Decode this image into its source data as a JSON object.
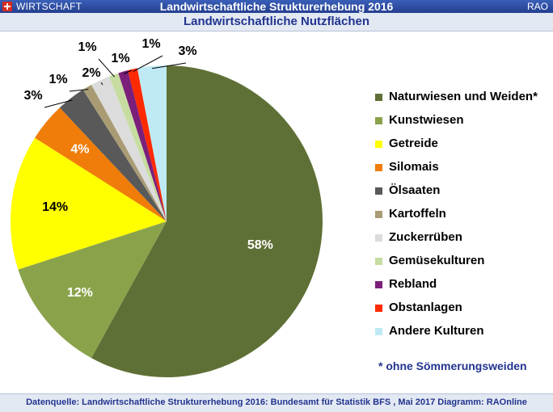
{
  "header": {
    "section": "WIRTSCHAFT",
    "title": "Landwirtschaftliche Strukturerhebung 2016",
    "brand": "RAO"
  },
  "chart_data": {
    "type": "pie",
    "title": "Landwirtschaftliche Nutzflächen",
    "slices": [
      {
        "label": "Naturwiesen und Weiden*",
        "value": 58,
        "display": "58%",
        "color": "#5f7036"
      },
      {
        "label": "Kunstwiesen",
        "value": 12,
        "display": "12%",
        "color": "#8aa34b"
      },
      {
        "label": "Getreide",
        "value": 14,
        "display": "14%",
        "color": "#ffff00"
      },
      {
        "label": "Silomais",
        "value": 4,
        "display": "4%",
        "color": "#f07d0a"
      },
      {
        "label": "Ölsaaten",
        "value": 3,
        "display": "3%",
        "color": "#595959"
      },
      {
        "label": "Kartoffeln",
        "value": 1,
        "display": "1%",
        "color": "#a99c74"
      },
      {
        "label": "Zuckerrüben",
        "value": 2,
        "display": "2%",
        "color": "#dcdcdc"
      },
      {
        "label": "Gemüsekulturen",
        "value": 1,
        "display": "1%",
        "color": "#c6dca0"
      },
      {
        "label": "Rebland",
        "value": 1,
        "display": "1%",
        "color": "#7b1f7b"
      },
      {
        "label": "Obstanlagen",
        "value": 1,
        "display": "1%",
        "color": "#ff2a00"
      },
      {
        "label": "Andere Kulturen",
        "value": 3,
        "display": "3%",
        "color": "#bfeaf5"
      }
    ],
    "legend_position": "right",
    "note": "* ohne Sömmerungsweiden"
  },
  "footer": {
    "text": "Datenquelle: Landwirtschaftliche Strukturerhebung 2016: Bundesamt für Statistik BFS , Mai 2017  Diagramm: RAOnline"
  }
}
